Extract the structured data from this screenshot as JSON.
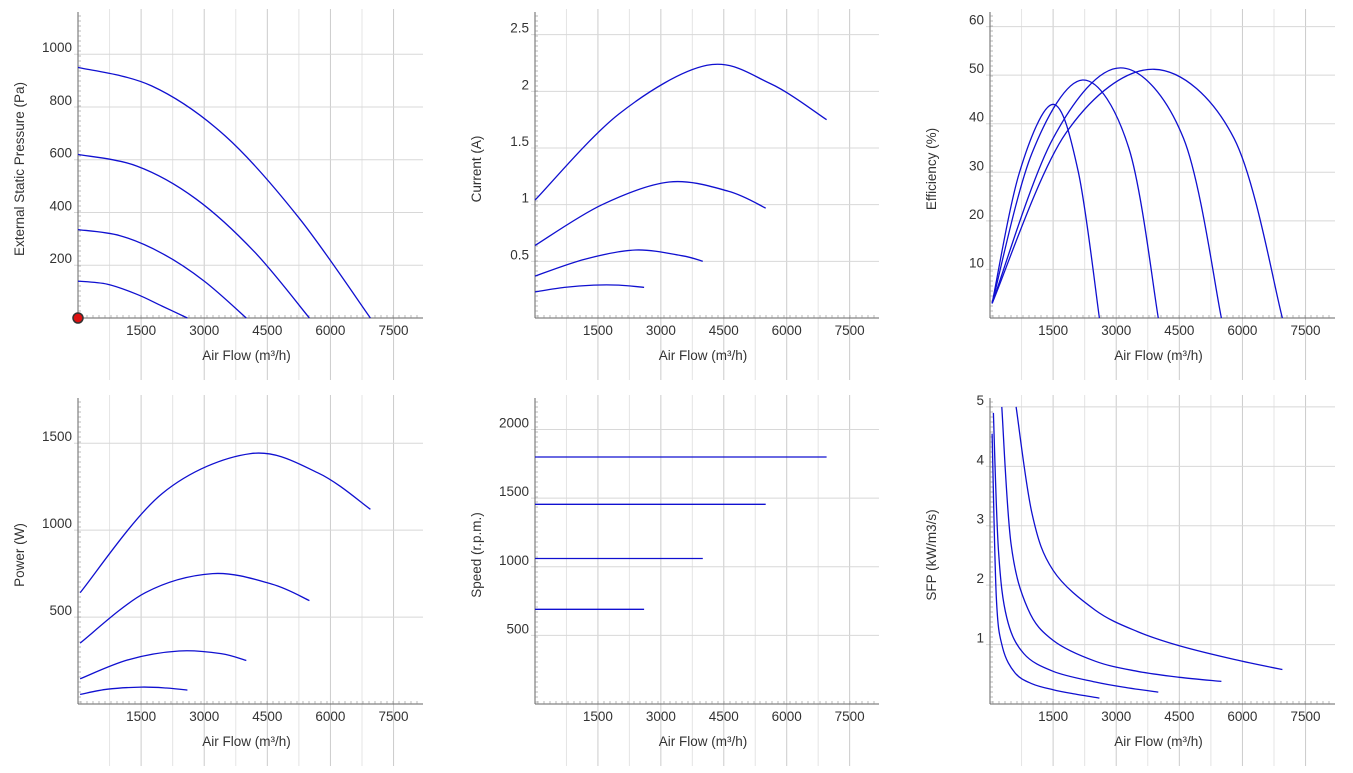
{
  "chart_data": [
    {
      "type": "line",
      "xlabel": "Air Flow (m³/h)",
      "ylabel": "External Static Pressure (Pa)",
      "xlim": [
        0,
        8200
      ],
      "ylim": [
        0,
        1160
      ],
      "x_ticks": [
        1500,
        3000,
        4500,
        6000,
        7500
      ],
      "y_ticks": [
        200,
        400,
        600,
        800,
        1000
      ],
      "grid": true,
      "series": [
        {
          "x": [
            0,
            700,
            1400,
            2000,
            2600
          ],
          "y": [
            140,
            128,
            90,
            45,
            0
          ]
        },
        {
          "x": [
            0,
            1000,
            2000,
            3000,
            4000
          ],
          "y": [
            335,
            312,
            245,
            140,
            0
          ]
        },
        {
          "x": [
            0,
            1400,
            2800,
            4200,
            5500
          ],
          "y": [
            620,
            576,
            452,
            250,
            0
          ]
        },
        {
          "x": [
            0,
            1750,
            3500,
            5250,
            6950
          ],
          "y": [
            950,
            880,
            690,
            380,
            0
          ]
        }
      ],
      "markers": [
        {
          "x": 0,
          "y": 0
        }
      ]
    },
    {
      "type": "line",
      "xlabel": "Air Flow (m³/h)",
      "ylabel": "Current (A)",
      "xlim": [
        0,
        8200
      ],
      "ylim": [
        0,
        2.7
      ],
      "x_ticks": [
        1500,
        3000,
        4500,
        6000,
        7500
      ],
      "y_ticks": [
        0.5,
        1,
        1.5,
        2,
        2.5
      ],
      "y_tick_labels": [
        "0.5",
        "1",
        "1.5",
        "2",
        "2.5"
      ],
      "grid": true,
      "series": [
        {
          "x": [
            0,
            700,
            1400,
            2000,
            2600
          ],
          "y": [
            0.23,
            0.27,
            0.29,
            0.29,
            0.27
          ]
        },
        {
          "x": [
            0,
            1200,
            2400,
            3500,
            4000
          ],
          "y": [
            0.37,
            0.52,
            0.6,
            0.55,
            0.5
          ]
        },
        {
          "x": [
            0,
            1600,
            3200,
            4600,
            5500
          ],
          "y": [
            0.64,
            1.0,
            1.2,
            1.12,
            0.97
          ]
        },
        {
          "x": [
            0,
            2000,
            4100,
            5600,
            6950
          ],
          "y": [
            1.04,
            1.8,
            2.23,
            2.07,
            1.75
          ]
        }
      ]
    },
    {
      "type": "line",
      "xlabel": "Air Flow (m³/h)",
      "ylabel": "Efficiency (%)",
      "xlim": [
        0,
        8200
      ],
      "ylim": [
        0,
        63
      ],
      "x_ticks": [
        1500,
        3000,
        4500,
        6000,
        7500
      ],
      "y_ticks": [
        10,
        20,
        30,
        40,
        50,
        60
      ],
      "grid": true,
      "series": [
        {
          "x": [
            50,
            700,
            1500,
            2100,
            2600
          ],
          "y": [
            3,
            30,
            44,
            30,
            0
          ]
        },
        {
          "x": [
            50,
            1000,
            2200,
            3300,
            4000
          ],
          "y": [
            3,
            34,
            49,
            35,
            0
          ]
        },
        {
          "x": [
            50,
            1500,
            3100,
            4600,
            5500
          ],
          "y": [
            3,
            37,
            51.5,
            37,
            0
          ]
        },
        {
          "x": [
            50,
            1800,
            3900,
            5800,
            6950
          ],
          "y": [
            3,
            38,
            51.2,
            37,
            0
          ]
        }
      ]
    },
    {
      "type": "line",
      "xlabel": "Air Flow (m³/h)",
      "ylabel": "Power (W)",
      "xlim": [
        0,
        8200
      ],
      "ylim": [
        0,
        1760
      ],
      "x_ticks": [
        1500,
        3000,
        4500,
        6000,
        7500
      ],
      "y_ticks": [
        500,
        1000,
        1500
      ],
      "grid": true,
      "series": [
        {
          "x": [
            50,
            700,
            1500,
            2100,
            2600
          ],
          "y": [
            55,
            85,
            97,
            92,
            80
          ]
        },
        {
          "x": [
            50,
            1200,
            2400,
            3400,
            4000
          ],
          "y": [
            145,
            255,
            305,
            290,
            250
          ]
        },
        {
          "x": [
            50,
            1600,
            3200,
            4600,
            5500
          ],
          "y": [
            350,
            640,
            750,
            690,
            595
          ]
        },
        {
          "x": [
            50,
            2000,
            4100,
            5700,
            6950
          ],
          "y": [
            640,
            1210,
            1440,
            1330,
            1120
          ]
        }
      ]
    },
    {
      "type": "line",
      "xlabel": "Air Flow (m³/h)",
      "ylabel": "Speed (r.p.m.)",
      "xlim": [
        0,
        8200
      ],
      "ylim": [
        0,
        2230
      ],
      "x_ticks": [
        1500,
        3000,
        4500,
        6000,
        7500
      ],
      "y_ticks": [
        500,
        1000,
        1500,
        2000
      ],
      "grid": true,
      "series": [
        {
          "x": [
            0,
            2600
          ],
          "y": [
            690,
            690
          ]
        },
        {
          "x": [
            0,
            4000
          ],
          "y": [
            1060,
            1060
          ]
        },
        {
          "x": [
            0,
            5500
          ],
          "y": [
            1455,
            1455
          ]
        },
        {
          "x": [
            0,
            6950
          ],
          "y": [
            1800,
            1800
          ]
        }
      ]
    },
    {
      "type": "line",
      "xlabel": "Air Flow (m³/h)",
      "ylabel": "SFP (kW/m3/s)",
      "xlim": [
        0,
        8200
      ],
      "ylim": [
        0,
        5.15
      ],
      "x_ticks": [
        1500,
        3000,
        4500,
        6000,
        7500
      ],
      "y_ticks": [
        1,
        2,
        3,
        4,
        5
      ],
      "grid": true,
      "series": [
        {
          "x": [
            50,
            150,
            300,
            600,
            1000,
            1500,
            2000,
            2600
          ],
          "y": [
            4.55,
            1.8,
            0.95,
            0.52,
            0.34,
            0.24,
            0.17,
            0.1
          ]
        },
        {
          "x": [
            80,
            200,
            400,
            800,
            1500,
            2500,
            3300,
            4000
          ],
          "y": [
            4.9,
            2.6,
            1.45,
            0.85,
            0.55,
            0.37,
            0.27,
            0.2
          ]
        },
        {
          "x": [
            280,
            500,
            900,
            1500,
            2500,
            3500,
            4500,
            5500
          ],
          "y": [
            5.0,
            2.7,
            1.6,
            1.07,
            0.72,
            0.55,
            0.45,
            0.38
          ]
        },
        {
          "x": [
            620,
            1000,
            1500,
            2500,
            3500,
            4500,
            5800,
            6950
          ],
          "y": [
            5.0,
            3.2,
            2.25,
            1.58,
            1.22,
            0.98,
            0.75,
            0.58
          ]
        }
      ]
    }
  ]
}
